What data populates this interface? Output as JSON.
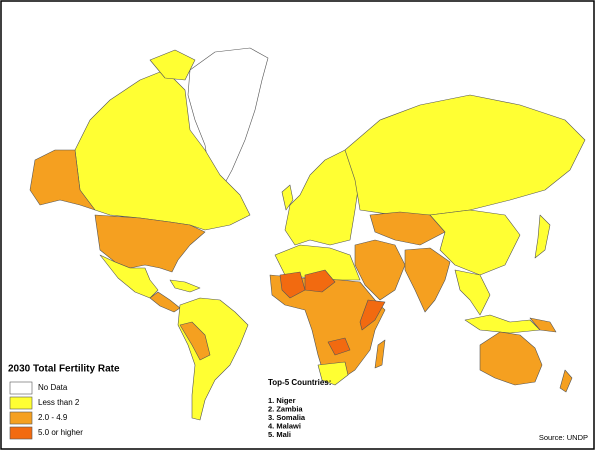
{
  "legend": {
    "title": "2030 Total Fertility Rate",
    "items": [
      {
        "label": "No Data",
        "color": "#ffffff"
      },
      {
        "label": "Less than 2",
        "color": "#ffff33"
      },
      {
        "label": "2.0 - 4.9",
        "color": "#f5a020"
      },
      {
        "label": "5.0 or higher",
        "color": "#f26a10"
      }
    ]
  },
  "top_countries": {
    "title": "Top-5 Countries:",
    "items": [
      "1. Niger",
      "2. Zambia",
      "3. Somalia",
      "4. Malawi",
      "5. Mali"
    ]
  },
  "source": "Source: UNDP"
}
